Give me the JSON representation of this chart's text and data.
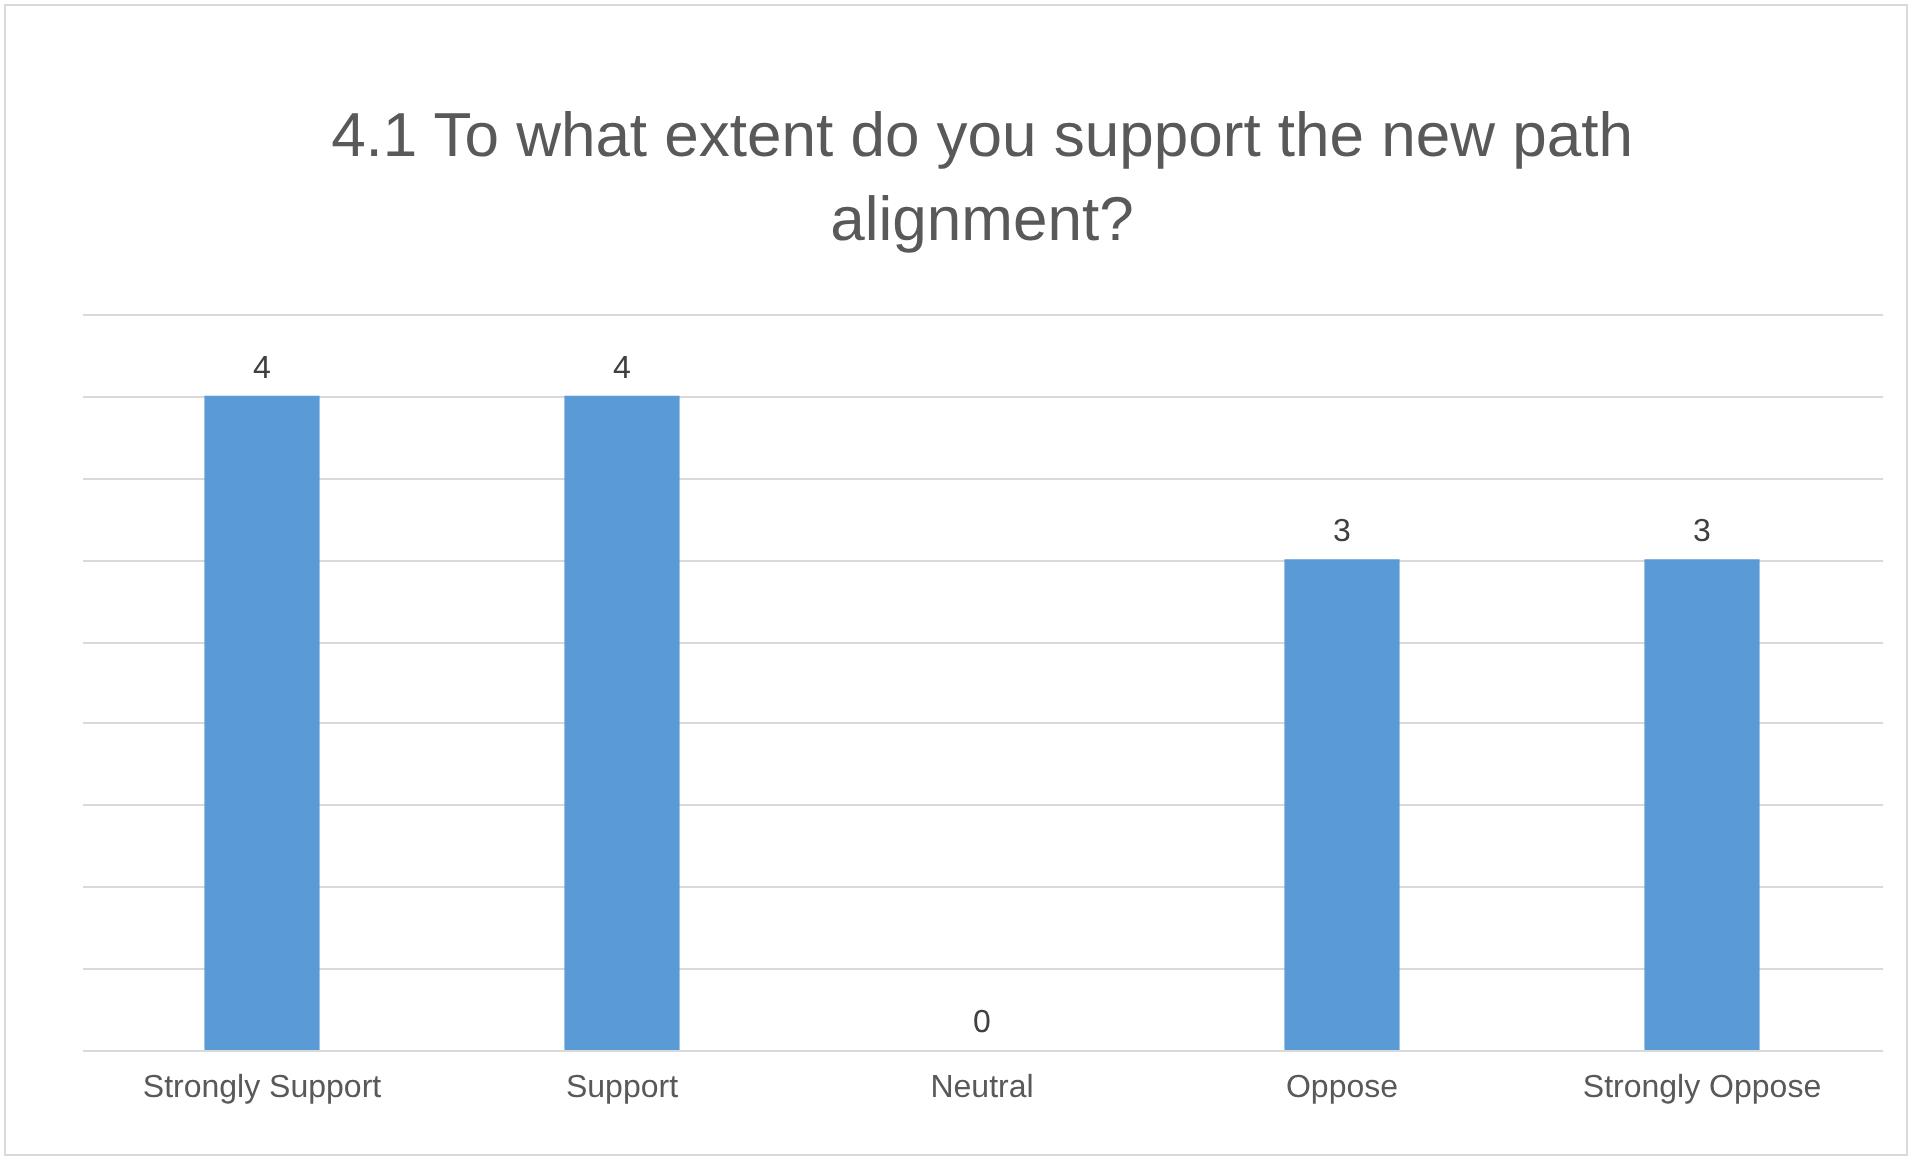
{
  "chart_data": {
    "type": "bar",
    "title": "4.1 To what extent do you support the new path alignment?",
    "categories": [
      "Strongly Support",
      "Support",
      "Neutral",
      "Oppose",
      "Strongly Oppose"
    ],
    "values": [
      4,
      4,
      0,
      3,
      3
    ],
    "color": "#5b9bd5",
    "ylim": [
      0,
      4.5
    ],
    "yticks": [
      {
        "value": 0,
        "label": null
      },
      {
        "value": 0.5,
        "label": null
      },
      {
        "value": 1,
        "label": null
      },
      {
        "value": 1.5,
        "label": null
      },
      {
        "value": 2,
        "label": null
      },
      {
        "value": 2.5,
        "label": null
      },
      {
        "value": 3,
        "label": null
      },
      {
        "value": 3.5,
        "label": null
      },
      {
        "value": 4,
        "label": null
      },
      {
        "value": 4.5,
        "label": null
      }
    ],
    "grid": "y",
    "tick_labels": "x",
    "data_labels": true
  }
}
